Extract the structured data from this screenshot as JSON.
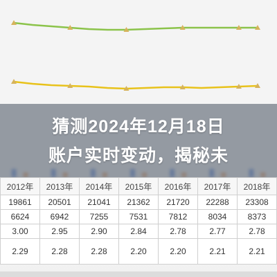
{
  "banner": {
    "line1": "猜测2024年12月18日",
    "line2": "账户实时变动，揭秘未"
  },
  "colors": {
    "upper_line": "#8bc34a",
    "upper_marker": "#d6b35c",
    "lower_line": "#e8c21a",
    "lower_marker": "#d6b35c",
    "bar_blue": "#3a6fd8",
    "bar_orange": "#ef8a3c"
  },
  "chart_data": {
    "type": "line",
    "series": [
      {
        "values": [
          33,
          36,
          38,
          40,
          42,
          43,
          43,
          42,
          41,
          40,
          40,
          40,
          40,
          40
        ]
      },
      {
        "values": [
          118,
          121,
          123,
          124,
          125,
          127,
          128,
          127,
          126,
          126,
          127,
          126,
          125,
          124
        ]
      }
    ]
  },
  "table": {
    "years": [
      "2012年",
      "2013年",
      "2014年",
      "2015年",
      "2016年",
      "2017年",
      "2018年"
    ],
    "rows": [
      [
        "19861",
        "20501",
        "21041",
        "21362",
        "21720",
        "22288",
        "23308"
      ],
      [
        "6624",
        "6942",
        "7255",
        "7531",
        "7812",
        "8034",
        "8373"
      ],
      [
        "3.00",
        "2.95",
        "2.90",
        "2.84",
        "2.78",
        "2.77",
        "2.78"
      ],
      [
        "2.29",
        "2.28",
        "2.28",
        "2.20",
        "2.20",
        "2.21",
        "2.21"
      ]
    ]
  }
}
